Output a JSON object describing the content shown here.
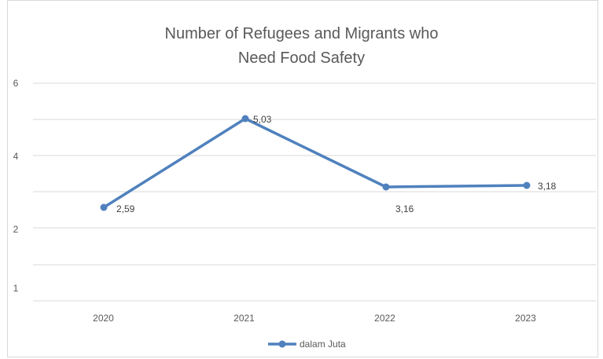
{
  "chart_data": {
    "type": "line",
    "title_line1": "Number of Refugees and Migrants who",
    "title_line2": "Need Food Safety",
    "categories": [
      "2020",
      "2021",
      "2022",
      "2023"
    ],
    "series": [
      {
        "name": "dalam Juta",
        "values": [
          2.59,
          5.03,
          3.16,
          3.18
        ],
        "labels": [
          "2,59",
          "5,03",
          "3,16",
          "3,18"
        ],
        "color": "#4f81bd"
      }
    ],
    "y_tick_values": [
      1,
      2,
      4,
      6
    ],
    "y_tick_labels": [
      "1",
      "2",
      "4",
      "6"
    ],
    "grid": true,
    "legend_position": "bottom"
  }
}
